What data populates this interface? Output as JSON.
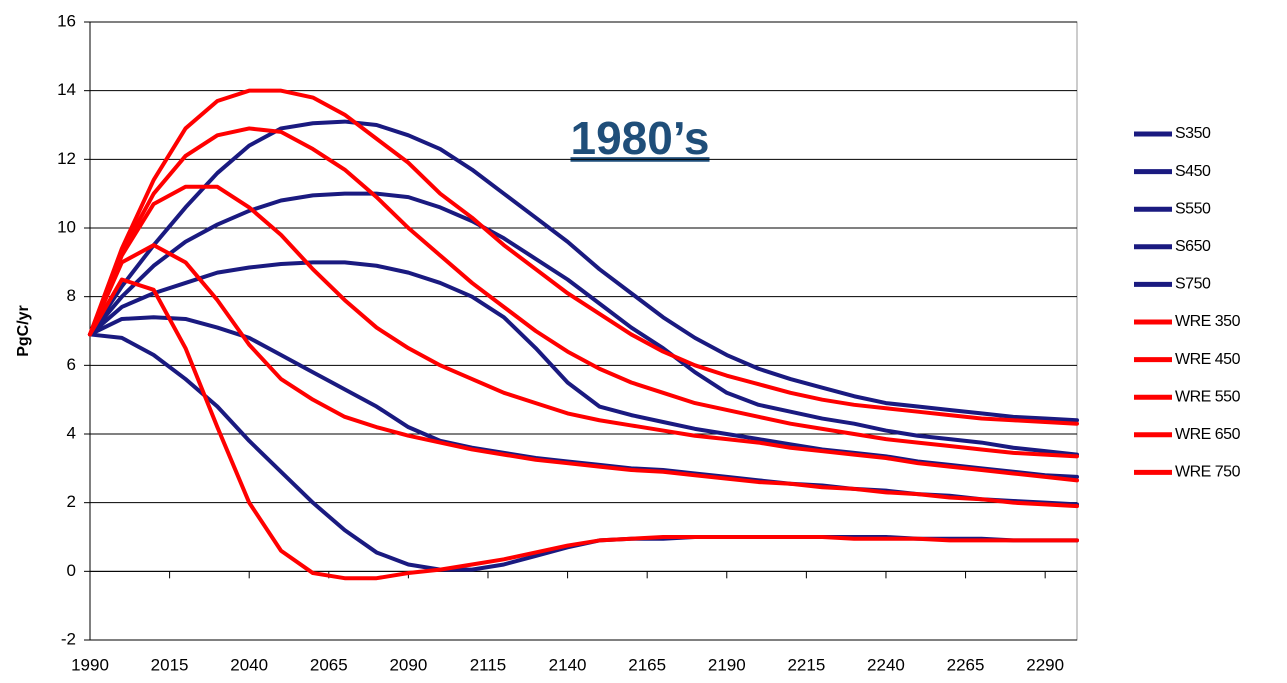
{
  "chart_data": {
    "type": "line",
    "annotation": "1980’s",
    "y_label": "PgC/yr",
    "x": [
      1990,
      2000,
      2010,
      2020,
      2030,
      2040,
      2050,
      2060,
      2070,
      2080,
      2090,
      2100,
      2110,
      2120,
      2130,
      2140,
      2150,
      2160,
      2170,
      2180,
      2190,
      2200,
      2210,
      2220,
      2230,
      2240,
      2250,
      2260,
      2270,
      2280,
      2290,
      2300
    ],
    "xlim": [
      1990,
      2300
    ],
    "xticks": [
      1990,
      2015,
      2040,
      2065,
      2090,
      2115,
      2140,
      2165,
      2190,
      2215,
      2240,
      2265,
      2290
    ],
    "ylim": [
      -2,
      16
    ],
    "yticks": [
      -2,
      0,
      2,
      4,
      6,
      8,
      10,
      12,
      14,
      16
    ],
    "grid": true,
    "legend": "right",
    "series": [
      {
        "name": "S350",
        "color": "#1a1a80",
        "values": [
          6.9,
          6.8,
          6.3,
          5.6,
          4.8,
          3.8,
          2.9,
          2.0,
          1.2,
          0.55,
          0.2,
          0.05,
          0.05,
          0.2,
          0.45,
          0.7,
          0.9,
          0.95,
          0.95,
          1.0,
          1.0,
          1.0,
          1.0,
          1.0,
          1.0,
          1.0,
          0.95,
          0.95,
          0.95,
          0.9,
          0.9,
          0.9
        ]
      },
      {
        "name": "S450",
        "color": "#1a1a80",
        "values": [
          6.9,
          7.35,
          7.4,
          7.35,
          7.1,
          6.8,
          6.3,
          5.8,
          5.3,
          4.8,
          4.2,
          3.8,
          3.6,
          3.45,
          3.3,
          3.2,
          3.1,
          3.0,
          2.95,
          2.85,
          2.75,
          2.65,
          2.55,
          2.5,
          2.4,
          2.35,
          2.25,
          2.2,
          2.1,
          2.05,
          2.0,
          1.95
        ]
      },
      {
        "name": "S550",
        "color": "#1a1a80",
        "values": [
          6.9,
          7.7,
          8.1,
          8.4,
          8.7,
          8.85,
          8.95,
          9.0,
          9.0,
          8.9,
          8.7,
          8.4,
          8.0,
          7.4,
          6.5,
          5.5,
          4.8,
          4.55,
          4.35,
          4.15,
          4.0,
          3.85,
          3.7,
          3.55,
          3.45,
          3.35,
          3.2,
          3.1,
          3.0,
          2.9,
          2.8,
          2.75
        ]
      },
      {
        "name": "S650",
        "color": "#1a1a80",
        "values": [
          6.9,
          8.0,
          8.9,
          9.6,
          10.1,
          10.5,
          10.8,
          10.95,
          11.0,
          11.0,
          10.9,
          10.6,
          10.2,
          9.7,
          9.1,
          8.5,
          7.8,
          7.1,
          6.5,
          5.8,
          5.2,
          4.85,
          4.65,
          4.45,
          4.3,
          4.1,
          3.95,
          3.85,
          3.75,
          3.6,
          3.5,
          3.4
        ]
      },
      {
        "name": "S750",
        "color": "#1a1a80",
        "values": [
          6.9,
          8.3,
          9.5,
          10.6,
          11.6,
          12.4,
          12.9,
          13.05,
          13.1,
          13.0,
          12.7,
          12.3,
          11.7,
          11.0,
          10.3,
          9.6,
          8.8,
          8.1,
          7.4,
          6.8,
          6.3,
          5.9,
          5.6,
          5.35,
          5.1,
          4.9,
          4.8,
          4.7,
          4.6,
          4.5,
          4.45,
          4.4
        ]
      },
      {
        "name": "WRE 350",
        "color": "#ff0000",
        "values": [
          6.9,
          8.5,
          8.2,
          6.5,
          4.2,
          2.0,
          0.6,
          -0.05,
          -0.2,
          -0.2,
          -0.05,
          0.05,
          0.2,
          0.35,
          0.55,
          0.75,
          0.9,
          0.95,
          1.0,
          1.0,
          1.0,
          1.0,
          1.0,
          1.0,
          0.95,
          0.95,
          0.95,
          0.9,
          0.9,
          0.9,
          0.9,
          0.9
        ]
      },
      {
        "name": "WRE 450",
        "color": "#ff0000",
        "values": [
          6.9,
          9.0,
          9.5,
          9.0,
          7.9,
          6.6,
          5.6,
          5.0,
          4.5,
          4.2,
          3.95,
          3.75,
          3.55,
          3.4,
          3.25,
          3.15,
          3.05,
          2.95,
          2.9,
          2.8,
          2.7,
          2.6,
          2.55,
          2.45,
          2.4,
          2.3,
          2.25,
          2.15,
          2.1,
          2.0,
          1.95,
          1.9
        ]
      },
      {
        "name": "WRE 550",
        "color": "#ff0000",
        "values": [
          6.9,
          9.2,
          10.7,
          11.2,
          11.2,
          10.6,
          9.8,
          8.8,
          7.9,
          7.1,
          6.5,
          6.0,
          5.6,
          5.2,
          4.9,
          4.6,
          4.4,
          4.25,
          4.1,
          3.95,
          3.85,
          3.75,
          3.6,
          3.5,
          3.4,
          3.3,
          3.15,
          3.05,
          2.95,
          2.85,
          2.75,
          2.65
        ]
      },
      {
        "name": "WRE 650",
        "color": "#ff0000",
        "values": [
          6.9,
          9.3,
          11.0,
          12.1,
          12.7,
          12.9,
          12.8,
          12.3,
          11.7,
          10.9,
          10.0,
          9.2,
          8.4,
          7.7,
          7.0,
          6.4,
          5.9,
          5.5,
          5.2,
          4.9,
          4.7,
          4.5,
          4.3,
          4.15,
          4.0,
          3.85,
          3.75,
          3.65,
          3.55,
          3.45,
          3.4,
          3.35
        ]
      },
      {
        "name": "WRE 750",
        "color": "#ff0000",
        "values": [
          6.9,
          9.4,
          11.4,
          12.9,
          13.7,
          14.0,
          14.0,
          13.8,
          13.3,
          12.6,
          11.9,
          11.0,
          10.3,
          9.5,
          8.8,
          8.1,
          7.5,
          6.9,
          6.4,
          6.0,
          5.7,
          5.45,
          5.2,
          5.0,
          4.85,
          4.75,
          4.65,
          4.55,
          4.45,
          4.4,
          4.35,
          4.3
        ]
      }
    ]
  }
}
